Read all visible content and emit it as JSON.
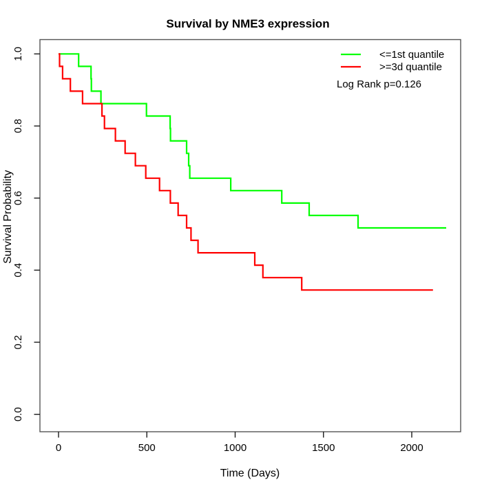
{
  "title": "Survival by NME3 expression",
  "axes": {
    "x": {
      "label": "Time (Days)",
      "ticks": [
        "0",
        "500",
        "1000",
        "1500",
        "2000"
      ]
    },
    "y": {
      "label": "Survival Probability",
      "ticks": [
        "0.0",
        "0.2",
        "0.4",
        "0.6",
        "0.8",
        "1.0"
      ]
    }
  },
  "legend": {
    "items": [
      {
        "label": "<=1st quantile",
        "color": "#00ff00"
      },
      {
        "label": ">=3d quantile",
        "color": "#ff0000"
      }
    ],
    "note": "Log Rank p=0.126"
  },
  "chart_data": {
    "type": "line",
    "subtype": "kaplan_meier_step",
    "title": "Survival by NME3 expression",
    "xlabel": "Time (Days)",
    "ylabel": "Survival Probability",
    "xlim": [
      0,
      2200
    ],
    "ylim": [
      0.0,
      1.0
    ],
    "x_ticks": [
      0,
      500,
      1000,
      1500,
      2000
    ],
    "y_ticks": [
      0.0,
      0.2,
      0.4,
      0.6,
      0.8,
      1.0
    ],
    "grid": false,
    "legend_position": "top-right",
    "annotation": "Log Rank p=0.126",
    "series": [
      {
        "name": "<=1st quantile",
        "color": "#00ff00",
        "points": [
          [
            0,
            1.0
          ],
          [
            114,
            0.9655
          ],
          [
            184,
            0.931
          ],
          [
            186,
            0.8966
          ],
          [
            240,
            0.8621
          ],
          [
            498,
            0.8276
          ],
          [
            632,
            0.7931
          ],
          [
            634,
            0.7586
          ],
          [
            725,
            0.7241
          ],
          [
            737,
            0.6897
          ],
          [
            743,
            0.6552
          ],
          [
            975,
            0.6207
          ],
          [
            1264,
            0.5862
          ],
          [
            1419,
            0.5517
          ],
          [
            1696,
            0.5172
          ],
          [
            2195,
            0.5172
          ]
        ]
      },
      {
        "name": ">=3d quantile",
        "color": "#ff0000",
        "points": [
          [
            0,
            1.0
          ],
          [
            6,
            0.9655
          ],
          [
            23,
            0.931
          ],
          [
            67,
            0.8966
          ],
          [
            136,
            0.8621
          ],
          [
            246,
            0.8276
          ],
          [
            260,
            0.7931
          ],
          [
            322,
            0.7586
          ],
          [
            377,
            0.7241
          ],
          [
            435,
            0.6897
          ],
          [
            494,
            0.6552
          ],
          [
            572,
            0.6207
          ],
          [
            633,
            0.5862
          ],
          [
            677,
            0.5517
          ],
          [
            725,
            0.5172
          ],
          [
            750,
            0.4828
          ],
          [
            790,
            0.4483
          ],
          [
            1111,
            0.4138
          ],
          [
            1157,
            0.3793
          ],
          [
            1377,
            0.3448
          ],
          [
            2120,
            0.3448
          ]
        ]
      }
    ]
  }
}
